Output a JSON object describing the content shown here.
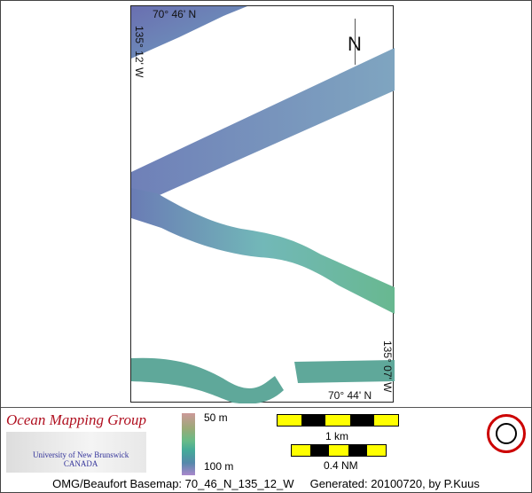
{
  "map": {
    "labels": {
      "top_lat": "70° 46' N",
      "left_lon": "135° 12' W",
      "bottom_lat": "70° 44' N",
      "right_lon": "135° 07' W",
      "north": "N"
    }
  },
  "legend": {
    "org_title": "Ocean Mapping Group",
    "org_line1": "University of New Brunswick",
    "org_line2": "CANADA",
    "depth_min": "50 m",
    "depth_max": "100 m",
    "scale_km": "1 km",
    "scale_nm": "0.4 NM"
  },
  "footer": {
    "basemap": "OMG/Beaufort Basemap: 70_46_N_135_12_W",
    "generated": "Generated: 20100720, by P.Kuus"
  }
}
